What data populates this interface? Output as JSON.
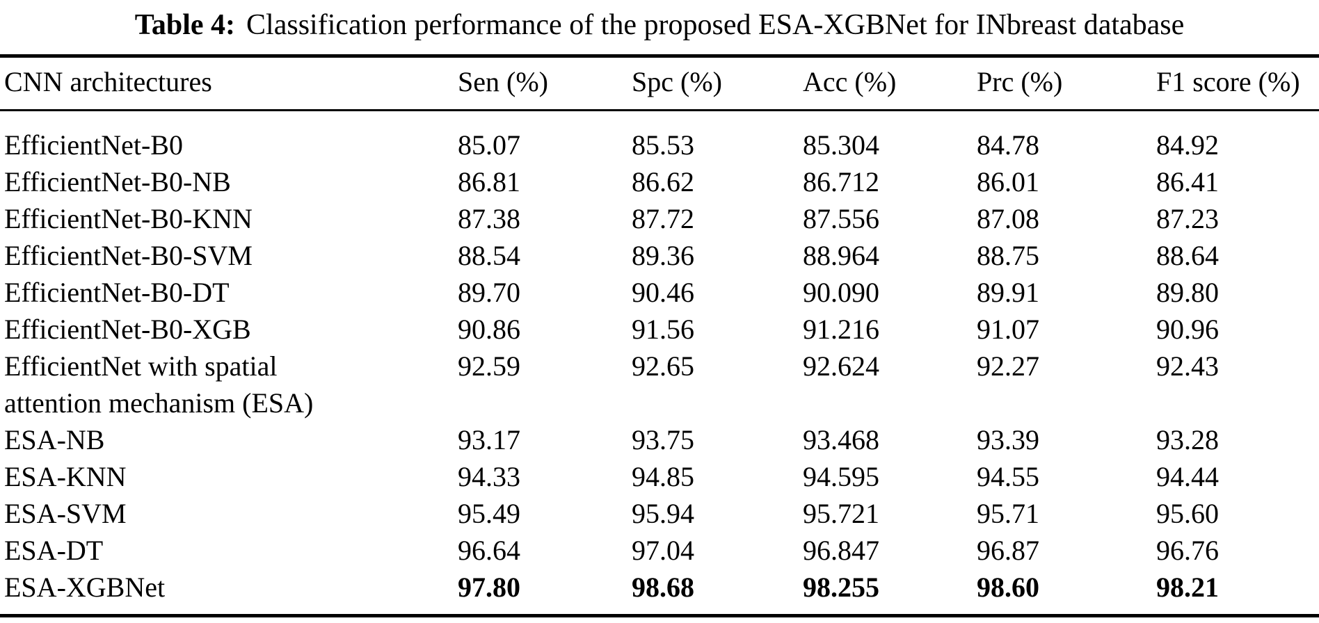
{
  "caption": {
    "label": "Table 4:",
    "text": "Classification performance of the proposed ESA-XGBNet for INbreast database"
  },
  "table": {
    "columns": [
      "CNN architectures",
      "Sen (%)",
      "Spc (%)",
      "Acc (%)",
      "Prc (%)",
      "F1 score (%)"
    ],
    "rows": [
      {
        "architecture": "EfficientNet-B0",
        "values": [
          "85.07",
          "85.53",
          "85.304",
          "84.78",
          "84.92"
        ],
        "bold_values": false
      },
      {
        "architecture": "EfficientNet-B0-NB",
        "values": [
          "86.81",
          "86.62",
          "86.712",
          "86.01",
          "86.41"
        ],
        "bold_values": false
      },
      {
        "architecture": "EfficientNet-B0-KNN",
        "values": [
          "87.38",
          "87.72",
          "87.556",
          "87.08",
          "87.23"
        ],
        "bold_values": false
      },
      {
        "architecture": "EfficientNet-B0-SVM",
        "values": [
          "88.54",
          "89.36",
          "88.964",
          "88.75",
          "88.64"
        ],
        "bold_values": false
      },
      {
        "architecture": "EfficientNet-B0-DT",
        "values": [
          "89.70",
          "90.46",
          "90.090",
          "89.91",
          "89.80"
        ],
        "bold_values": false
      },
      {
        "architecture": "EfficientNet-B0-XGB",
        "values": [
          "90.86",
          "91.56",
          "91.216",
          "91.07",
          "90.96"
        ],
        "bold_values": false
      },
      {
        "architecture": "EfficientNet with spatial\nattention mechanism (ESA)",
        "values": [
          "92.59",
          "92.65",
          "92.624",
          "92.27",
          "92.43"
        ],
        "bold_values": false
      },
      {
        "architecture": "ESA-NB",
        "values": [
          "93.17",
          "93.75",
          "93.468",
          "93.39",
          "93.28"
        ],
        "bold_values": false
      },
      {
        "architecture": "ESA-KNN",
        "values": [
          "94.33",
          "94.85",
          "94.595",
          "94.55",
          "94.44"
        ],
        "bold_values": false
      },
      {
        "architecture": "ESA-SVM",
        "values": [
          "95.49",
          "95.94",
          "95.721",
          "95.71",
          "95.60"
        ],
        "bold_values": false
      },
      {
        "architecture": "ESA-DT",
        "values": [
          "96.64",
          "97.04",
          "96.847",
          "96.87",
          "96.76"
        ],
        "bold_values": false
      },
      {
        "architecture": "ESA-XGBNet",
        "values": [
          "97.80",
          "98.68",
          "98.255",
          "98.60",
          "98.21"
        ],
        "bold_values": true
      }
    ]
  }
}
